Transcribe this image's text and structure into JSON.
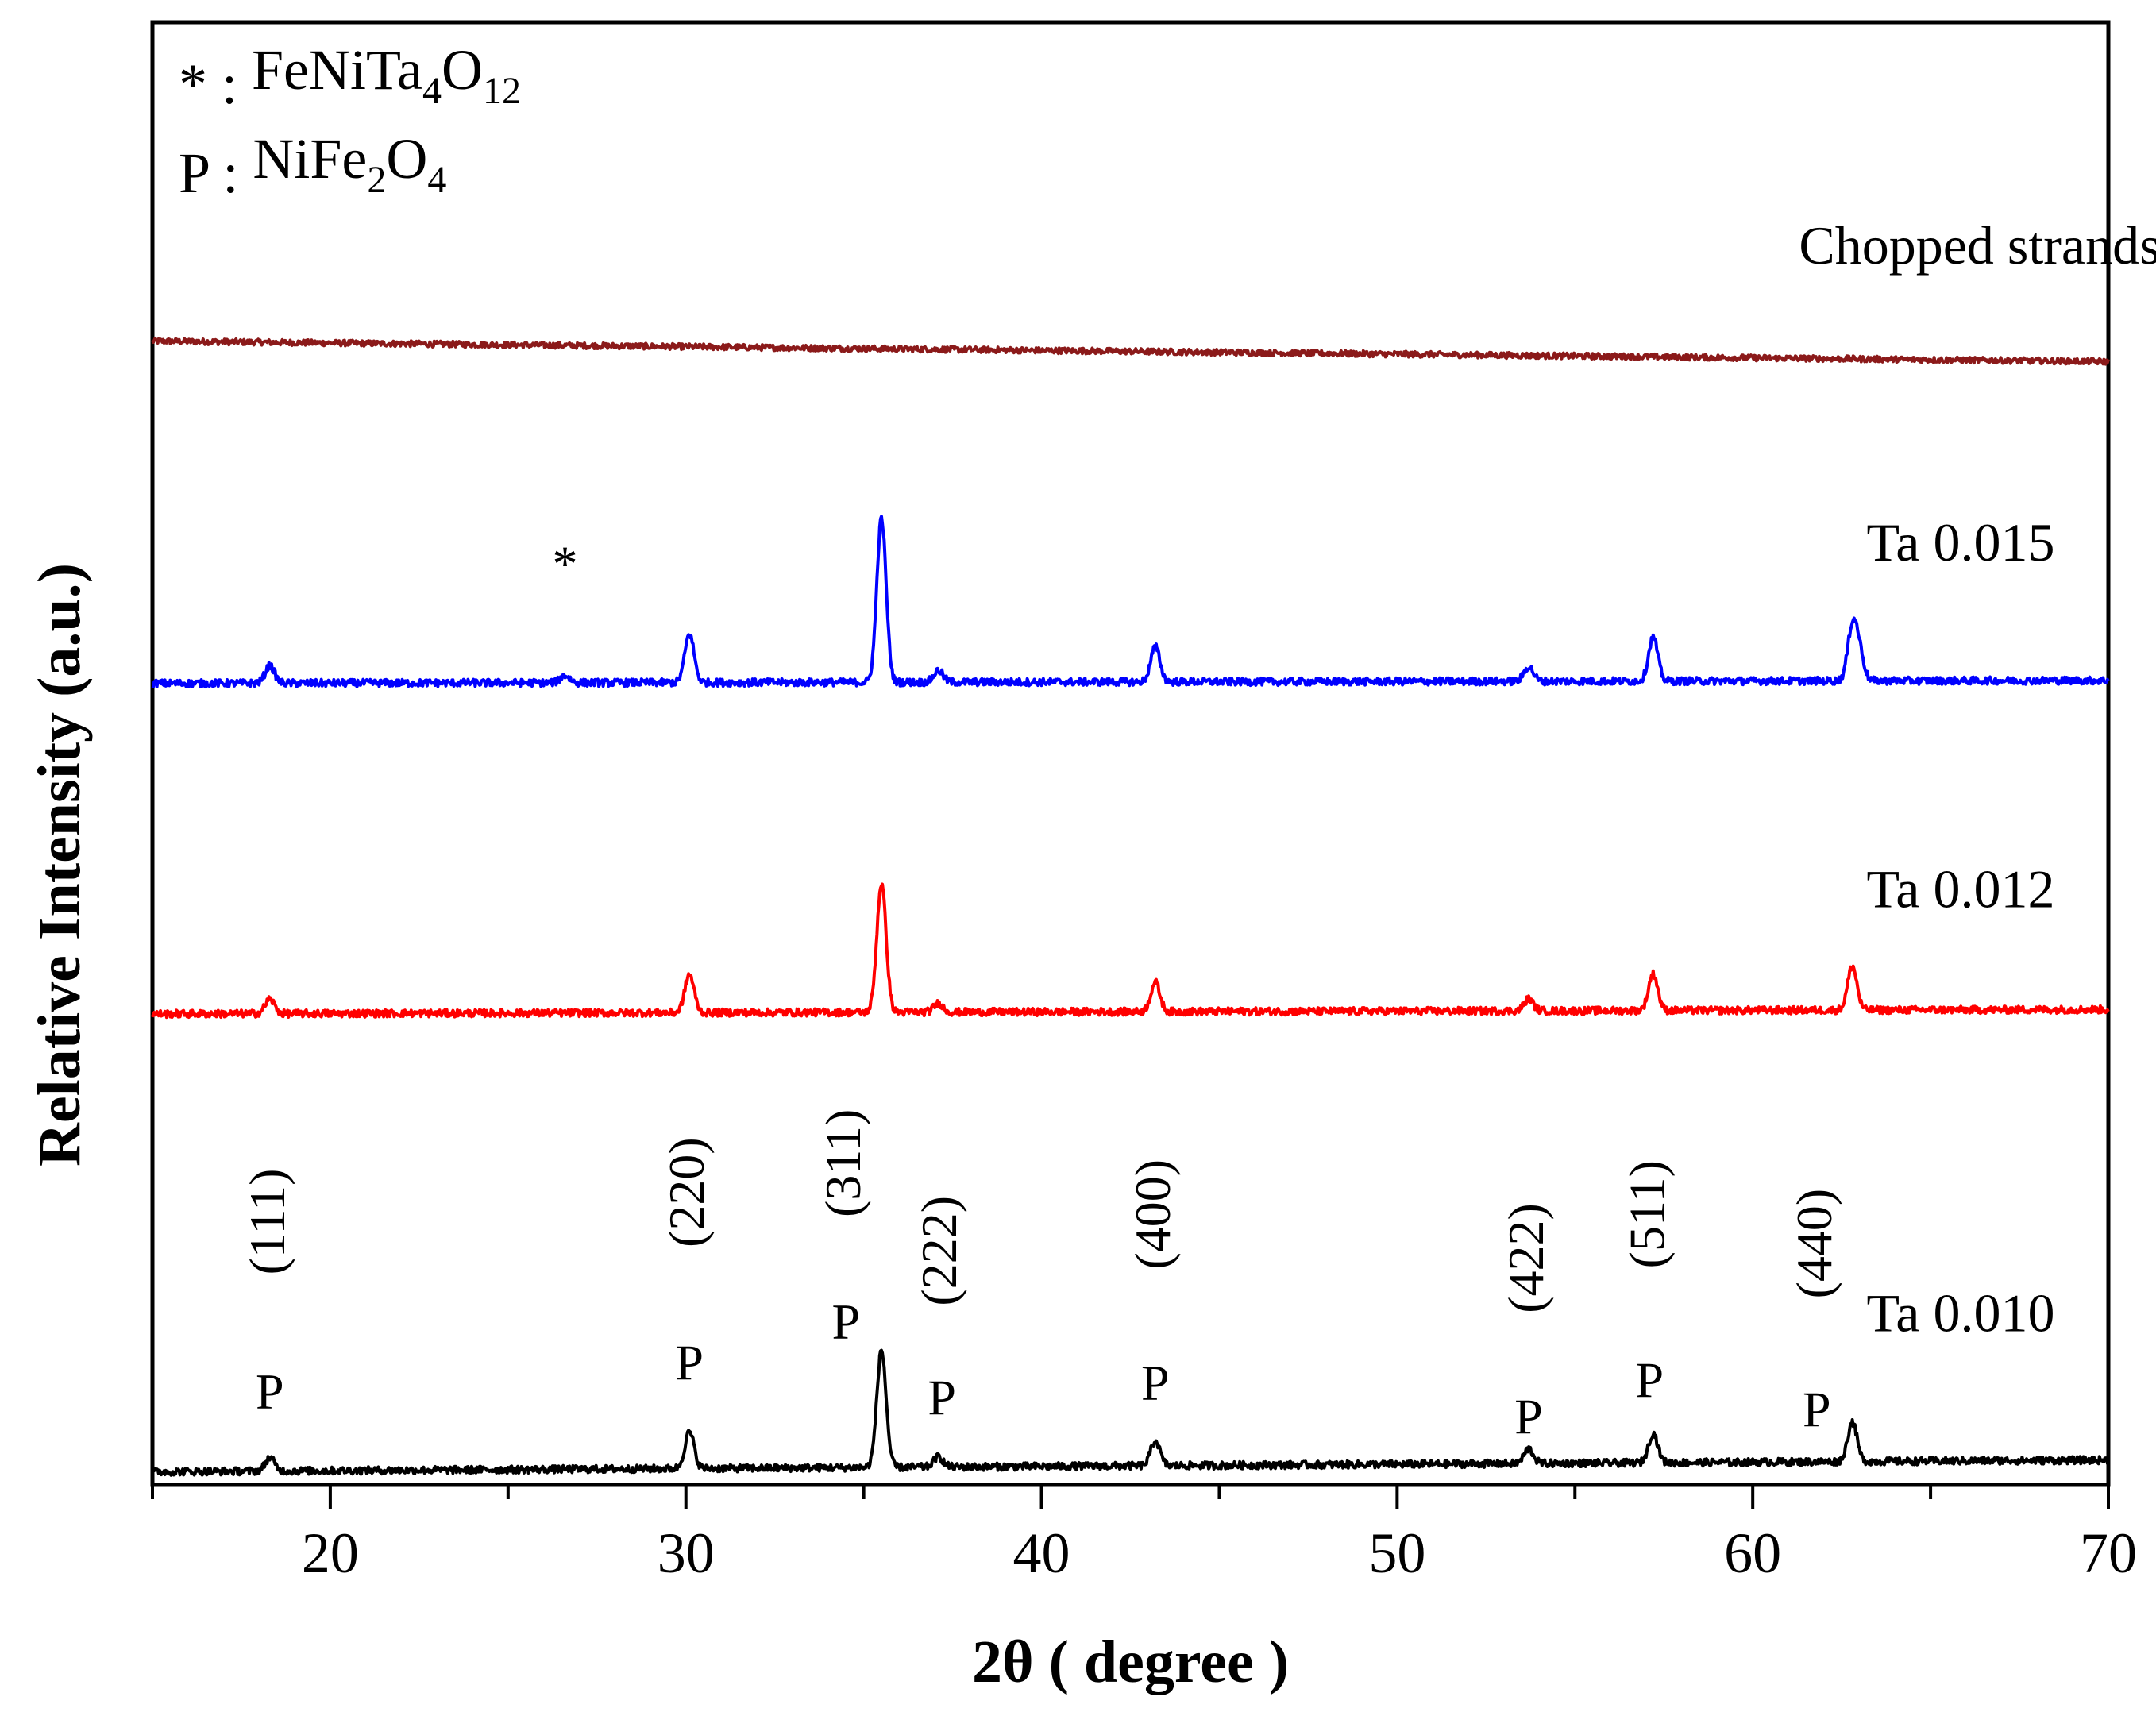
{
  "chart_data": {
    "type": "line",
    "title": "",
    "xlabel": "2θ ( degree )",
    "ylabel": "Relative Intensity (a.u.)",
    "xlim": [
      15,
      70
    ],
    "xticks": [
      20,
      30,
      40,
      50,
      60,
      70
    ],
    "xtick_labels": [
      "20",
      "30",
      "40",
      "50",
      "60",
      "70"
    ],
    "y_units": "a.u. (arbitrary, stacked traces; y is normalized intensity 0 = bottom of plot, 1 = top)",
    "legend": {
      "placement": "top-left",
      "entries": [
        {
          "symbol": "*",
          "sep": " : ",
          "parts": [
            [
              "FeNiTa",
              ""
            ],
            [
              "4",
              "sub"
            ],
            [
              "O",
              ""
            ],
            [
              "12",
              "sub"
            ]
          ]
        },
        {
          "symbol": "P",
          "sep": " : ",
          "parts": [
            [
              "NiFe",
              ""
            ],
            [
              "2",
              "sub"
            ],
            [
              "O",
              ""
            ],
            [
              "4",
              "sub"
            ]
          ]
        }
      ]
    },
    "series": [
      {
        "name": "Chopped strands",
        "label": "Chopped strands",
        "color": "#8b1a1a",
        "label_x": 61.3,
        "label_y": 0.835,
        "baseline_start": 0.782,
        "baseline_end": 0.768,
        "noise": 0.002,
        "peaks": []
      },
      {
        "name": "Ta 0.015",
        "label": "Ta 0.015",
        "color": "#0000ff",
        "label_x": 63.2,
        "label_y": 0.632,
        "baseline_start": 0.548,
        "baseline_end": 0.55,
        "noise": 0.0025,
        "peaks": [
          {
            "x": 18.3,
            "h": 0.012
          },
          {
            "x": 26.6,
            "h": 0.005
          },
          {
            "x": 30.1,
            "h": 0.033
          },
          {
            "x": 35.5,
            "h": 0.112
          },
          {
            "x": 37.1,
            "h": 0.008
          },
          {
            "x": 43.2,
            "h": 0.024
          },
          {
            "x": 53.7,
            "h": 0.01
          },
          {
            "x": 57.2,
            "h": 0.03
          },
          {
            "x": 62.8,
            "h": 0.036
          },
          {
            "x": 63.0,
            "h": 0.018
          }
        ],
        "annotations": [
          {
            "x": 26.6,
            "text": "*"
          }
        ]
      },
      {
        "name": "Ta 0.012",
        "label": "Ta 0.012",
        "color": "#ff0000",
        "label_x": 63.2,
        "label_y": 0.395,
        "baseline_start": 0.322,
        "baseline_end": 0.325,
        "noise": 0.0025,
        "peaks": [
          {
            "x": 18.3,
            "h": 0.01
          },
          {
            "x": 30.1,
            "h": 0.026
          },
          {
            "x": 35.5,
            "h": 0.088
          },
          {
            "x": 37.1,
            "h": 0.006
          },
          {
            "x": 43.2,
            "h": 0.02
          },
          {
            "x": 53.7,
            "h": 0.008
          },
          {
            "x": 57.2,
            "h": 0.025
          },
          {
            "x": 62.8,
            "h": 0.03
          }
        ]
      },
      {
        "name": "Ta 0.010",
        "label": "Ta 0.010",
        "color": "#000000",
        "label_x": 63.2,
        "label_y": 0.105,
        "baseline_start": 0.009,
        "baseline_end": 0.017,
        "noise": 0.0025,
        "peaks": [
          {
            "x": 18.3,
            "h": 0.009
          },
          {
            "x": 30.1,
            "h": 0.025
          },
          {
            "x": 35.5,
            "h": 0.08
          },
          {
            "x": 37.1,
            "h": 0.007
          },
          {
            "x": 43.2,
            "h": 0.017
          },
          {
            "x": 53.7,
            "h": 0.01
          },
          {
            "x": 57.2,
            "h": 0.02
          },
          {
            "x": 62.8,
            "h": 0.027
          }
        ],
        "annotations": [
          {
            "x": 18.3,
            "text": "P",
            "hkl": "(111)",
            "p_y": 0.052,
            "hkl_y": 0.18
          },
          {
            "x": 30.1,
            "text": "P",
            "hkl": "(220)",
            "p_y": 0.072,
            "hkl_y": 0.2
          },
          {
            "x": 34.5,
            "text": "P",
            "hkl": "(311)",
            "p_y": 0.1,
            "hkl_y": 0.22
          },
          {
            "x": 37.2,
            "text": "P",
            "hkl": "(222)",
            "p_y": 0.048,
            "hkl_y": 0.16
          },
          {
            "x": 43.2,
            "text": "P",
            "hkl": "(400)",
            "p_y": 0.058,
            "hkl_y": 0.185
          },
          {
            "x": 53.7,
            "text": "P",
            "hkl": "(422)",
            "p_y": 0.035,
            "hkl_y": 0.155
          },
          {
            "x": 57.1,
            "text": "P",
            "hkl": "(511)",
            "p_y": 0.06,
            "hkl_y": 0.185
          },
          {
            "x": 61.8,
            "text": "P",
            "hkl": "(440)",
            "p_y": 0.04,
            "hkl_y": 0.165
          }
        ]
      }
    ]
  }
}
